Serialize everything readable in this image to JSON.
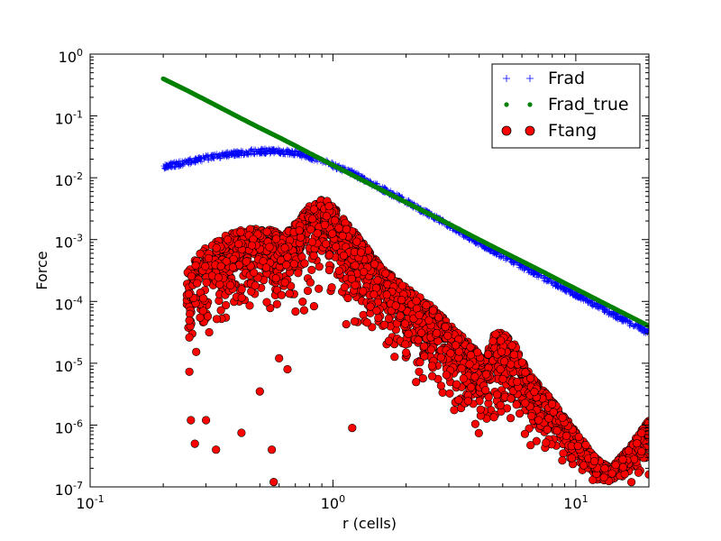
{
  "chart_data": {
    "type": "scatter",
    "xscale": "log",
    "yscale": "log",
    "xlim": [
      0.1,
      20
    ],
    "ylim": [
      1e-07,
      1
    ],
    "xlabel": "r (cells)",
    "ylabel": "Force",
    "grid": false,
    "legend_position": "top-right",
    "x_ticks": [
      {
        "value": 0.1,
        "base": "10",
        "exp": "-1"
      },
      {
        "value": 1,
        "base": "10",
        "exp": "0"
      },
      {
        "value": 10,
        "base": "10",
        "exp": "1"
      }
    ],
    "y_ticks": [
      {
        "value": 1,
        "base": "10",
        "exp": "0"
      },
      {
        "value": 0.1,
        "base": "10",
        "exp": "-1"
      },
      {
        "value": 0.01,
        "base": "10",
        "exp": "-2"
      },
      {
        "value": 0.001,
        "base": "10",
        "exp": "-3"
      },
      {
        "value": 0.0001,
        "base": "10",
        "exp": "-4"
      },
      {
        "value": 1e-05,
        "base": "10",
        "exp": "-5"
      },
      {
        "value": 1e-06,
        "base": "10",
        "exp": "-6"
      },
      {
        "value": 1e-07,
        "base": "10",
        "exp": "-7"
      }
    ],
    "series": [
      {
        "name": "Frad",
        "marker": "plus",
        "color": "#0000ff",
        "x": [
          0.2,
          0.25,
          0.3,
          0.35,
          0.4,
          0.5,
          0.6,
          0.7,
          0.8,
          0.9,
          1.0,
          1.2,
          1.5,
          2.0,
          3.0,
          4.0,
          5.0,
          7.0,
          10.0,
          15.0,
          20.0
        ],
        "y": [
          0.015,
          0.018,
          0.021,
          0.023,
          0.025,
          0.027,
          0.027,
          0.025,
          0.022,
          0.019,
          0.016,
          0.012,
          0.0075,
          0.0042,
          0.0017,
          0.00088,
          0.00055,
          0.00027,
          0.00013,
          5.6e-05,
          3.1e-05
        ]
      },
      {
        "name": "Frad_true",
        "marker": "dot",
        "color": "#008000",
        "x": [
          0.2,
          0.25,
          0.3,
          0.4,
          0.5,
          0.6,
          0.7,
          0.8,
          1.0,
          1.5,
          2.0,
          3.0,
          4.0,
          5.0,
          7.0,
          10.0,
          15.0,
          20.0
        ],
        "y": [
          0.4,
          0.26,
          0.18,
          0.1,
          0.064,
          0.045,
          0.033,
          0.025,
          0.016,
          0.0071,
          0.004,
          0.0018,
          0.001,
          0.00064,
          0.00033,
          0.00016,
          7.1e-05,
          4e-05
        ]
      },
      {
        "name": "Ftang",
        "marker": "circle",
        "color": "#ff0000",
        "envelope_x": [
          0.25,
          0.28,
          0.32,
          0.38,
          0.45,
          0.55,
          0.62,
          0.7,
          0.78,
          0.85,
          0.9,
          0.95,
          1.0,
          1.1,
          1.3,
          1.6,
          2.0,
          2.5,
          3.0,
          3.6,
          4.2,
          4.6,
          5.0,
          5.6,
          6.5,
          8.0,
          10.0,
          12.0,
          14.0,
          17.0,
          20.0
        ],
        "envelope_upper": [
          0.0003,
          0.0006,
          0.0009,
          0.0013,
          0.0015,
          0.0015,
          0.0012,
          0.0018,
          0.0032,
          0.0042,
          0.0044,
          0.0042,
          0.0035,
          0.0022,
          0.001,
          0.00035,
          0.00017,
          9e-05,
          4.5e-05,
          2.2e-05,
          1.2e-05,
          3e-05,
          3.2e-05,
          2e-05,
          6.5e-06,
          2.5e-06,
          8e-07,
          3e-07,
          2e-07,
          5e-07,
          1.2e-06
        ],
        "envelope_lower": [
          1e-06,
          5e-06,
          1e-05,
          1.5e-05,
          2.5e-05,
          3e-05,
          3.5e-05,
          2e-05,
          3e-05,
          5e-05,
          7e-05,
          7e-05,
          5e-05,
          3e-05,
          2e-05,
          8e-06,
          4e-06,
          2e-06,
          1.3e-06,
          7e-07,
          4e-07,
          6e-07,
          7e-07,
          5e-07,
          3e-07,
          2e-07,
          1.5e-07,
          1e-07,
          1e-07,
          1e-07,
          1e-07
        ],
        "outliers_x": [
          0.26,
          0.27,
          0.3,
          0.33,
          0.42,
          0.5,
          0.56,
          0.57,
          0.6,
          0.65,
          1.2
        ],
        "outliers_y": [
          1.2e-06,
          5e-07,
          1.2e-06,
          4e-07,
          7.5e-07,
          3.5e-06,
          4e-07,
          1.2e-07,
          1.2e-05,
          8e-06,
          9e-07
        ]
      }
    ]
  }
}
